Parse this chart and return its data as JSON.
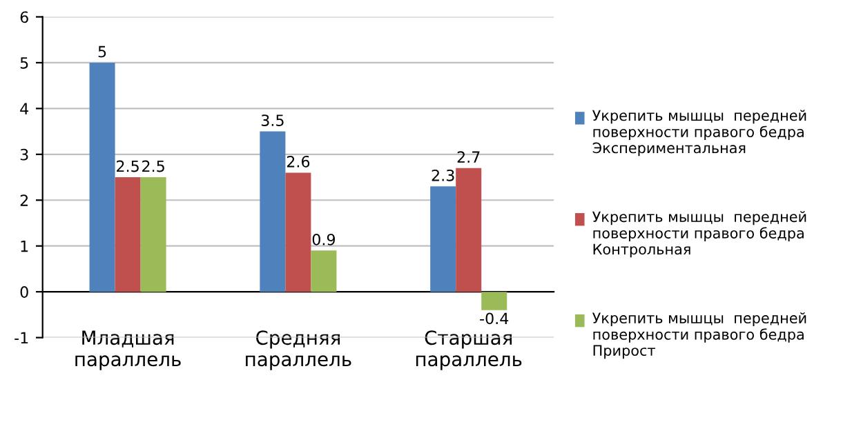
{
  "chart_data": {
    "type": "bar",
    "categories": [
      "Младшая\nпараллель",
      "Средняя\nпараллель",
      "Старшая\nпараллель"
    ],
    "series": [
      {
        "name": "Укрепить мышцы  передней поверхности правого бедра Экспериментальная",
        "color": "#4f81bd",
        "values": [
          5,
          3.5,
          2.3
        ]
      },
      {
        "name": "Укрепить мышцы  передней поверхности правого бедра Контрольная",
        "color": "#c0504d",
        "values": [
          2.5,
          2.6,
          2.7
        ]
      },
      {
        "name": "Укрепить мышцы  передней поверхности правого бедра Прирост",
        "color": "#9bbb59",
        "values": [
          2.5,
          0.9,
          -0.4
        ]
      }
    ],
    "ylim": [
      -1,
      6
    ],
    "yticks": [
      -1,
      0,
      1,
      2,
      3,
      4,
      5,
      6
    ],
    "grid": "y",
    "legend": "right",
    "data_labels": true
  }
}
